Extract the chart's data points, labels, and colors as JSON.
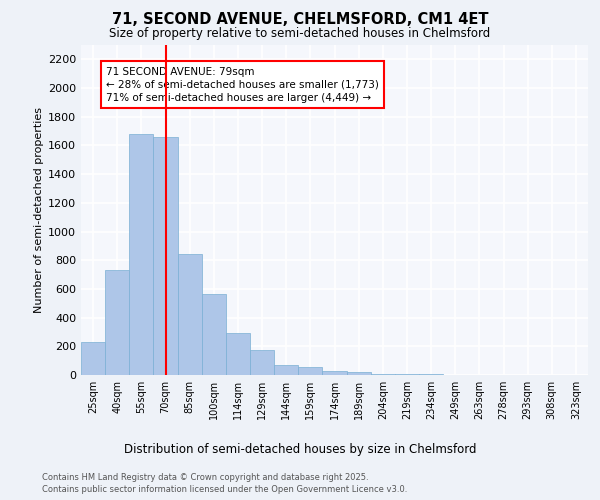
{
  "title1": "71, SECOND AVENUE, CHELMSFORD, CM1 4ET",
  "title2": "Size of property relative to semi-detached houses in Chelmsford",
  "xlabel": "Distribution of semi-detached houses by size in Chelmsford",
  "ylabel": "Number of semi-detached properties",
  "bar_labels": [
    "25sqm",
    "40sqm",
    "55sqm",
    "70sqm",
    "85sqm",
    "100sqm",
    "114sqm",
    "129sqm",
    "144sqm",
    "159sqm",
    "174sqm",
    "189sqm",
    "204sqm",
    "219sqm",
    "234sqm",
    "249sqm",
    "263sqm",
    "278sqm",
    "293sqm",
    "308sqm",
    "323sqm"
  ],
  "bar_values": [
    230,
    730,
    1680,
    1660,
    845,
    565,
    295,
    175,
    70,
    55,
    30,
    20,
    10,
    5,
    5,
    3,
    2,
    2,
    1,
    1,
    1
  ],
  "bar_color": "#aec6e8",
  "bar_edge_color": "#7aafd4",
  "property_bin_index": 3,
  "annotation_text": "71 SECOND AVENUE: 79sqm\n← 28% of semi-detached houses are smaller (1,773)\n71% of semi-detached houses are larger (4,449) →",
  "ylim": [
    0,
    2300
  ],
  "yticks": [
    0,
    200,
    400,
    600,
    800,
    1000,
    1200,
    1400,
    1600,
    1800,
    2000,
    2200
  ],
  "bg_color": "#eef2f8",
  "plot_bg_color": "#f5f7fc",
  "grid_color": "#ffffff",
  "footer1": "Contains HM Land Registry data © Crown copyright and database right 2025.",
  "footer2": "Contains public sector information licensed under the Open Government Licence v3.0."
}
